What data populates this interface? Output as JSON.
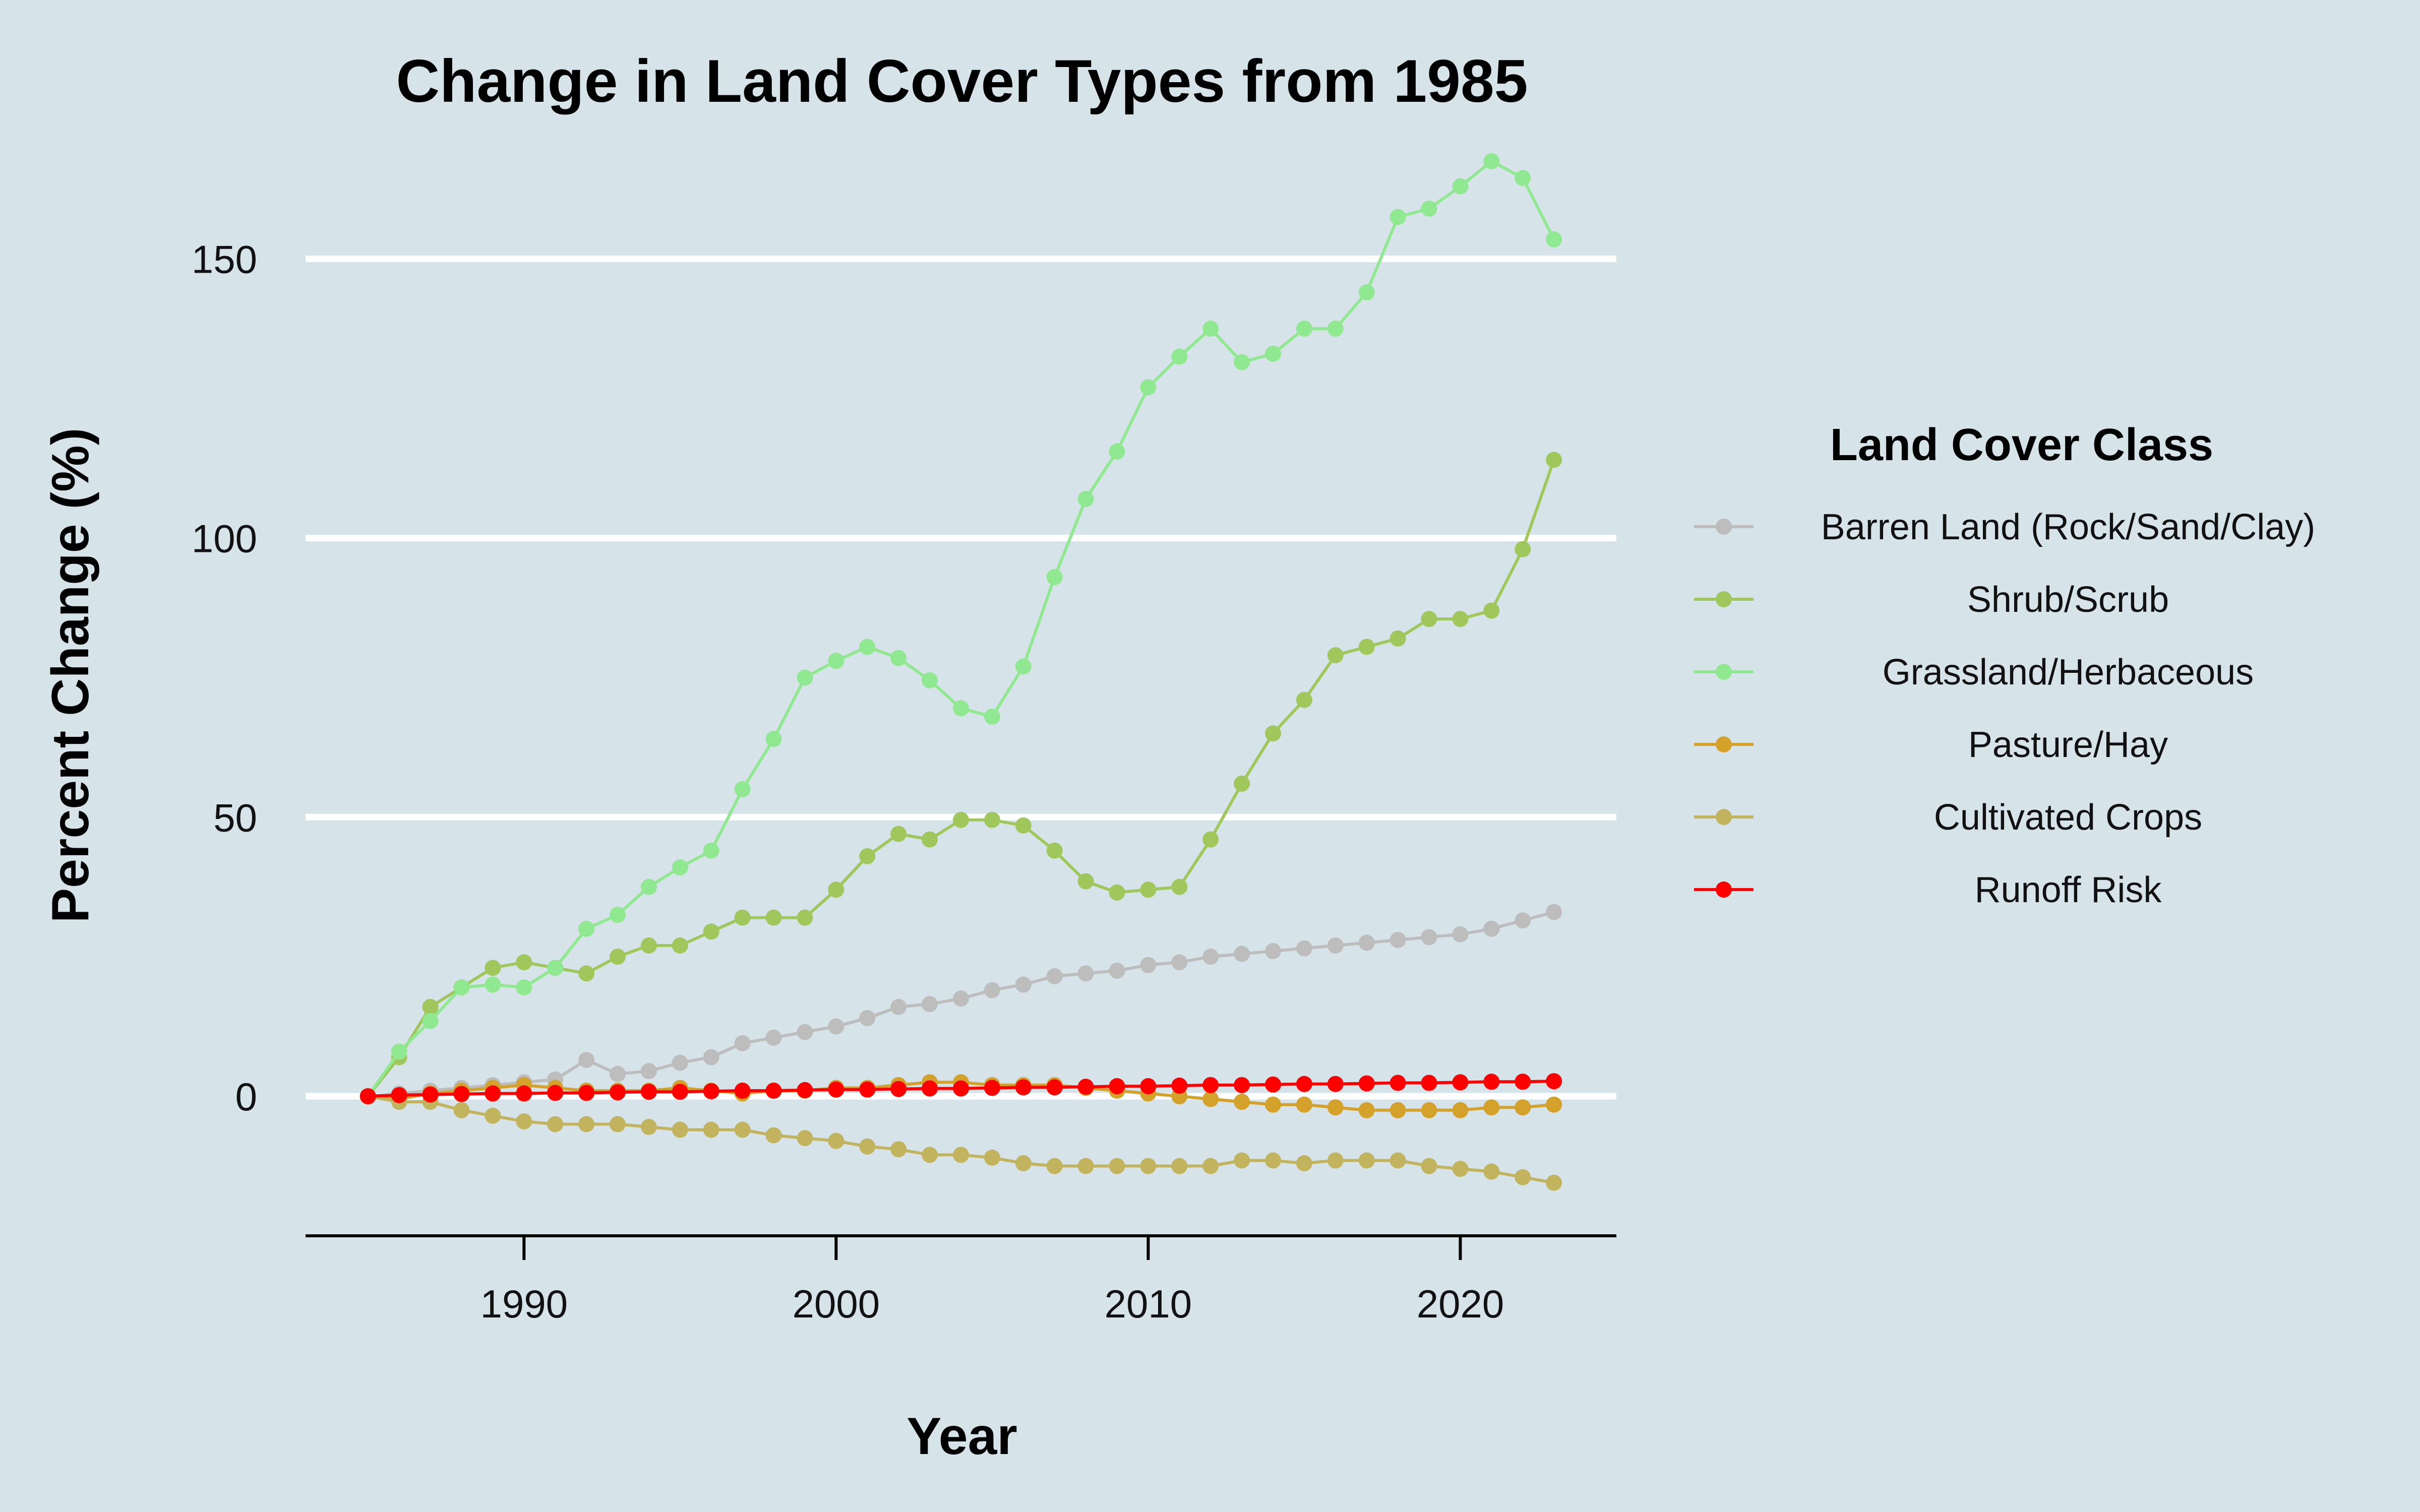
{
  "chart_data": {
    "type": "line",
    "title": "Change in Land Cover Types from 1985",
    "xlabel": "Year",
    "ylabel": "Percent Change (%)",
    "xlim": [
      1983,
      2025
    ],
    "ylim": [
      -25,
      172
    ],
    "x_ticks": [
      1990,
      2000,
      2010,
      2020
    ],
    "y_ticks": [
      0,
      50,
      100,
      150
    ],
    "grid": "horizontal major lines",
    "legend": {
      "title": "Land Cover Class",
      "position": "right"
    },
    "x": [
      1985,
      1986,
      1987,
      1988,
      1989,
      1990,
      1991,
      1992,
      1993,
      1994,
      1995,
      1996,
      1997,
      1998,
      1999,
      2000,
      2001,
      2002,
      2003,
      2004,
      2005,
      2006,
      2007,
      2008,
      2009,
      2010,
      2011,
      2012,
      2013,
      2014,
      2015,
      2016,
      2017,
      2018,
      2019,
      2020,
      2021,
      2022,
      2023
    ],
    "series": [
      {
        "name": "Barren Land (Rock/Sand/Clay)",
        "color": "#bdbdbd",
        "values": [
          0,
          0.5,
          1,
          1.5,
          2,
          2.5,
          3,
          6.5,
          4,
          4.5,
          6,
          7,
          9.5,
          10.5,
          11.5,
          12.5,
          14,
          16,
          16.5,
          17.5,
          19,
          20,
          21.5,
          22,
          22.5,
          23.5,
          24,
          25,
          25.5,
          26,
          26.5,
          27,
          27.5,
          28,
          28.5,
          29,
          30,
          31.5,
          33
        ]
      },
      {
        "name": "Shrub/Scrub",
        "color": "#a0c75c",
        "values": [
          0,
          7,
          16,
          19.5,
          23,
          24,
          23,
          22,
          25,
          27,
          27,
          29.5,
          32,
          32,
          32,
          37,
          43,
          47,
          46,
          49.5,
          49.5,
          48.5,
          44,
          38.5,
          36.5,
          37,
          37.5,
          46,
          56,
          65,
          71,
          79,
          80.5,
          82,
          85.5,
          85.5,
          87,
          98,
          114
        ]
      },
      {
        "name": "Grassland/Herbaceous",
        "color": "#90e890",
        "values": [
          0,
          8,
          13.5,
          19.5,
          20,
          19.5,
          23,
          30,
          32.5,
          37.5,
          41,
          44,
          55,
          64,
          75,
          78,
          80.5,
          78.5,
          74.5,
          69.5,
          68,
          77,
          93,
          107,
          115.5,
          127,
          132.5,
          137.5,
          131.5,
          133,
          137.5,
          137.5,
          144,
          157.5,
          159,
          163,
          167.5,
          164.5,
          153.5
        ]
      },
      {
        "name": "Pasture/Hay",
        "color": "#d4a12a",
        "values": [
          0,
          -0.5,
          0.5,
          1,
          1.5,
          2,
          1.5,
          1,
          1,
          1,
          1.5,
          1,
          0.5,
          1,
          1,
          1.5,
          1.5,
          2,
          2.5,
          2.5,
          2,
          2,
          2,
          1.5,
          1,
          0.5,
          0,
          -0.5,
          -1,
          -1.5,
          -1.5,
          -2,
          -2.5,
          -2.5,
          -2.5,
          -2.5,
          -2,
          -2,
          -1.5
        ]
      },
      {
        "name": "Cultivated Crops",
        "color": "#c2b45e",
        "values": [
          0,
          -1,
          -1,
          -2.5,
          -3.5,
          -4.5,
          -5,
          -5,
          -5,
          -5.5,
          -6,
          -6,
          -6,
          -7,
          -7.5,
          -8,
          -9,
          -9.5,
          -10.5,
          -10.5,
          -11,
          -12,
          -12.5,
          -12.5,
          -12.5,
          -12.5,
          -12.5,
          -12.5,
          -11.5,
          -11.5,
          -12,
          -11.5,
          -11.5,
          -11.5,
          -12.5,
          -13,
          -13.5,
          -14.5,
          -15.5
        ]
      },
      {
        "name": "Runoff Risk",
        "color": "#ff0000",
        "values": [
          0,
          0.2,
          0.3,
          0.4,
          0.5,
          0.5,
          0.6,
          0.6,
          0.7,
          0.8,
          0.8,
          0.9,
          1,
          1,
          1.1,
          1.2,
          1.2,
          1.3,
          1.4,
          1.4,
          1.5,
          1.6,
          1.6,
          1.7,
          1.8,
          1.8,
          1.9,
          2,
          2,
          2.1,
          2.2,
          2.2,
          2.3,
          2.4,
          2.4,
          2.5,
          2.6,
          2.6,
          2.7
        ]
      }
    ]
  }
}
